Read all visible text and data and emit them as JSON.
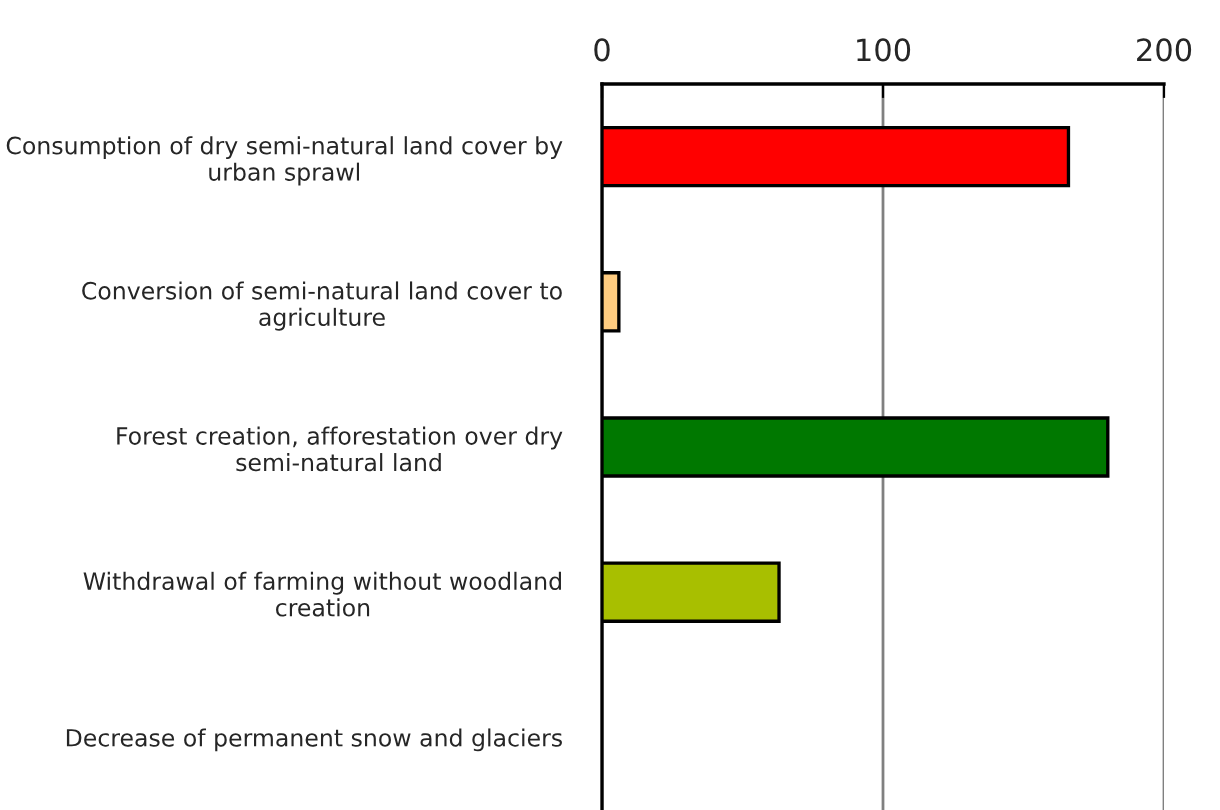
{
  "chart_data": {
    "type": "bar",
    "orientation": "horizontal",
    "categories": [
      "Consumption of dry semi-natural land cover by urban sprawl",
      "Conversion of semi-natural land cover to agriculture",
      "Forest creation, afforestation over dry semi-natural land",
      "Withdrawal of farming without woodland creation",
      "Decrease of permanent snow and glaciers"
    ],
    "values": [
      166,
      6,
      180,
      63,
      0
    ],
    "colors": [
      "#ff0000",
      "#ffcc80",
      "#007800",
      "#a8bf00",
      "#ffffff"
    ],
    "xlim": [
      0,
      200
    ],
    "xticks": [
      0,
      100,
      200
    ],
    "grid": "x",
    "legend": false
  }
}
